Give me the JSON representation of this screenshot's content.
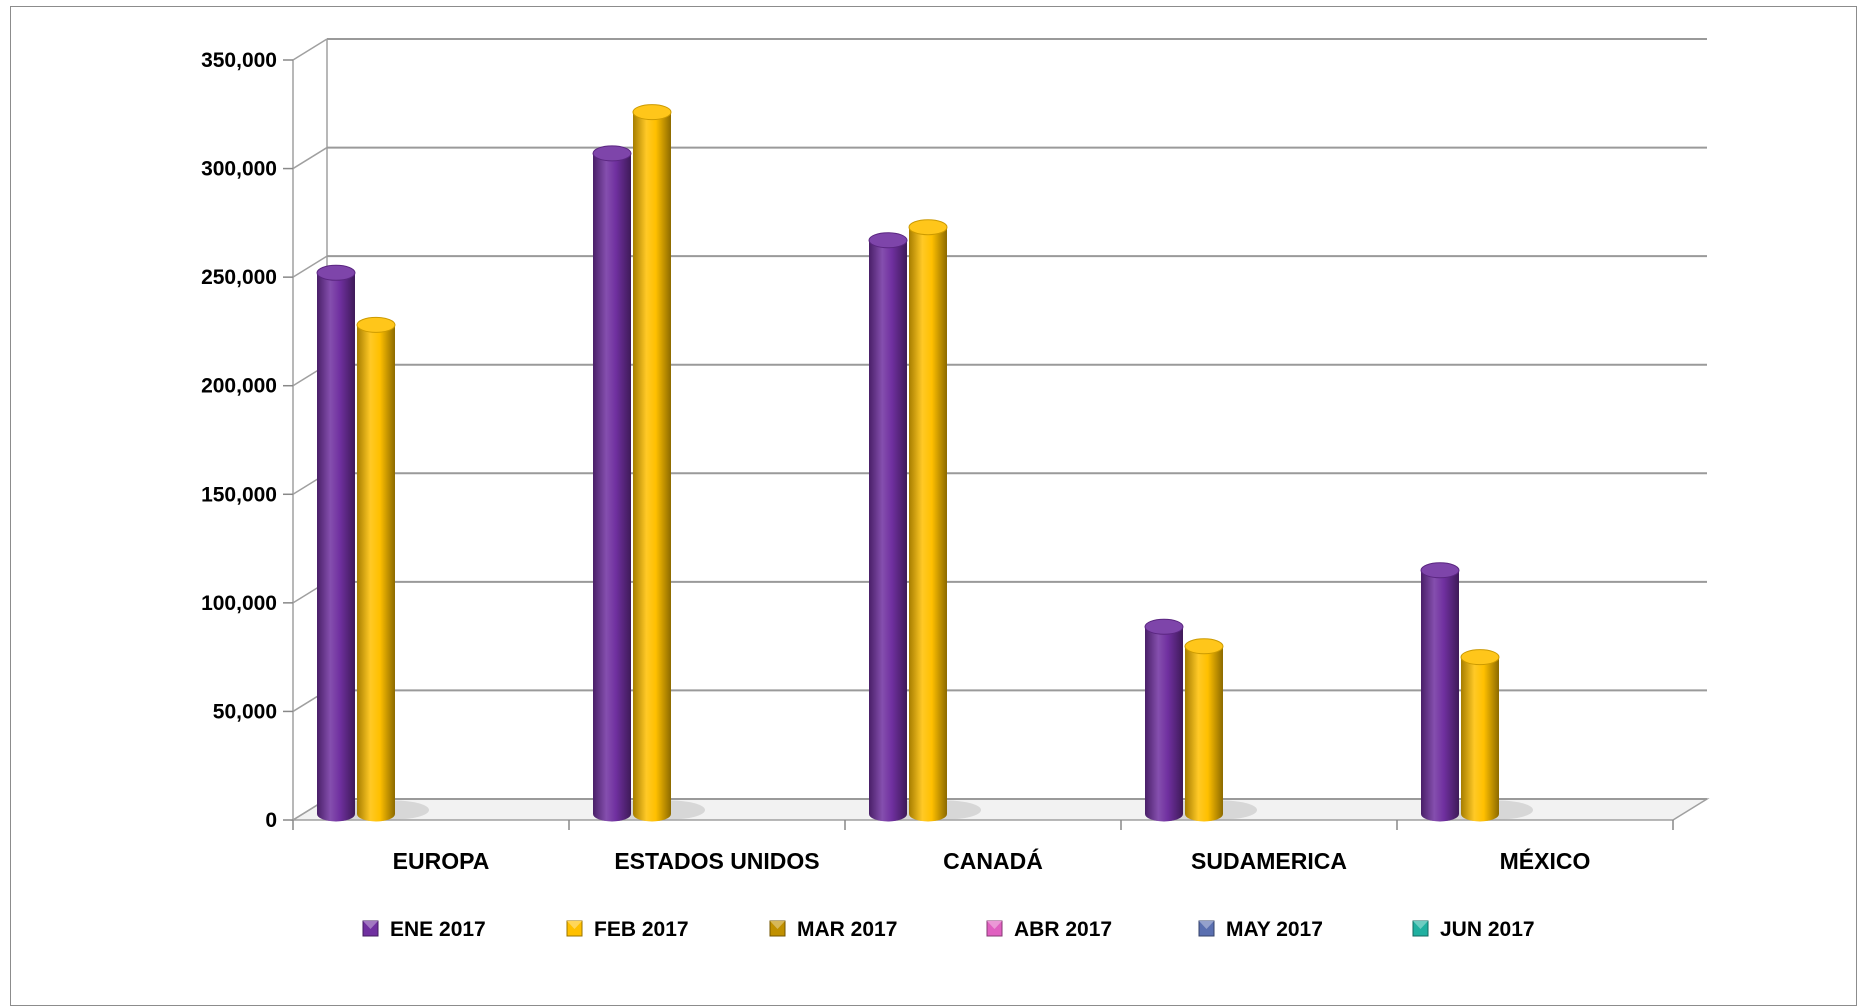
{
  "chart_data": {
    "type": "bar",
    "style": "3d-cylinder",
    "title": "",
    "xlabel": "",
    "ylabel": "",
    "categories": [
      "EUROPA",
      "ESTADOS UNIDOS",
      "CANADÁ",
      "SUDAMERICA",
      "MÉXICO"
    ],
    "series": [
      {
        "name": "ENE 2017",
        "color": "#7030A0",
        "values": [
          252000,
          307000,
          267000,
          89000,
          115000
        ]
      },
      {
        "name": "FEB 2017",
        "color": "#FFC000",
        "values": [
          228000,
          326000,
          273000,
          80000,
          75000
        ]
      },
      {
        "name": "MAR 2017",
        "color": "#C09000",
        "values": [
          null,
          null,
          null,
          null,
          null
        ]
      },
      {
        "name": "ABR 2017",
        "color": "#E060C0",
        "values": [
          null,
          null,
          null,
          null,
          null
        ]
      },
      {
        "name": "MAY 2017",
        "color": "#5A6FB0",
        "values": [
          null,
          null,
          null,
          null,
          null
        ]
      },
      {
        "name": "JUN 2017",
        "color": "#20B0A0",
        "values": [
          null,
          null,
          null,
          null,
          null
        ]
      }
    ],
    "ylim": [
      0,
      350000
    ],
    "yticks": [
      0,
      50000,
      100000,
      150000,
      200000,
      250000,
      300000,
      350000
    ],
    "ytick_labels": [
      "0",
      "50,000",
      "100,000",
      "150,000",
      "200,000",
      "250,000",
      "300,000",
      "350,000"
    ],
    "grid": true,
    "legend_position": "bottom"
  }
}
